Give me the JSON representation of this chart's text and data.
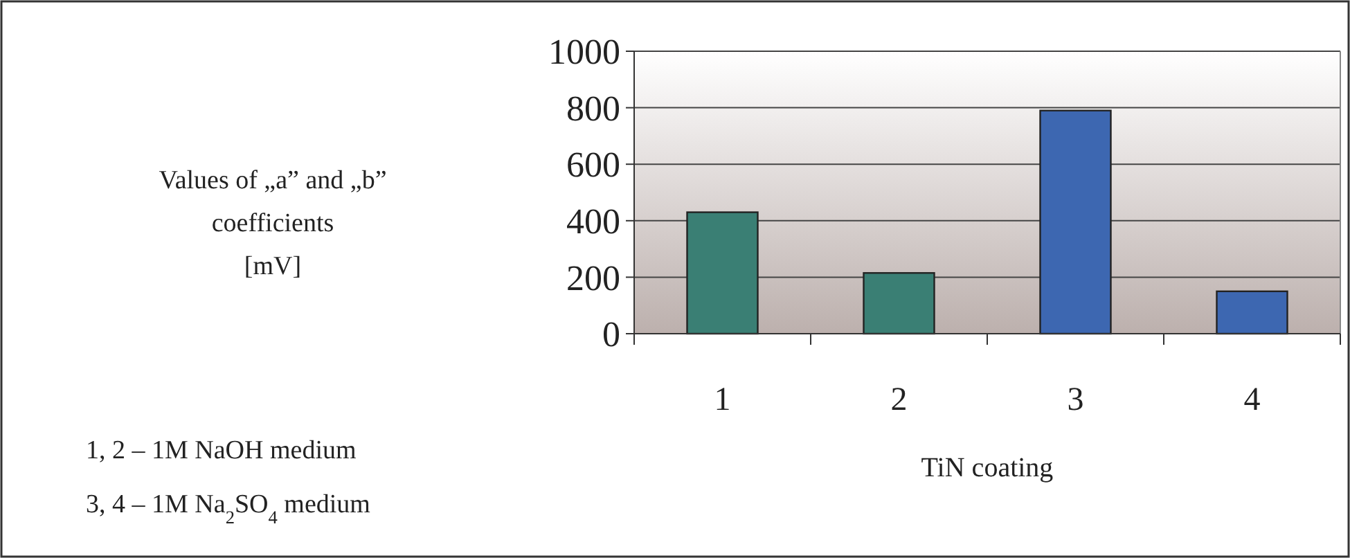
{
  "chart_data": {
    "type": "bar",
    "xlabel": "TiN coating",
    "categories": [
      "1",
      "2",
      "3",
      "4"
    ],
    "values": [
      430,
      215,
      790,
      150
    ],
    "colors": [
      "#3a7f74",
      "#3a7f74",
      "#3d67b1",
      "#3d67b1"
    ],
    "ylim": [
      0,
      1000
    ],
    "yticks": [
      0,
      200,
      400,
      600,
      800,
      1000
    ],
    "grid": "y",
    "annotations": [
      "Values of „a” and „b”\ncoefficients\n[mV]",
      "1, 2 – 1M NaOH medium",
      "3, 4 – 1M Na$_{2}$SO$_{4}$ medium"
    ]
  }
}
